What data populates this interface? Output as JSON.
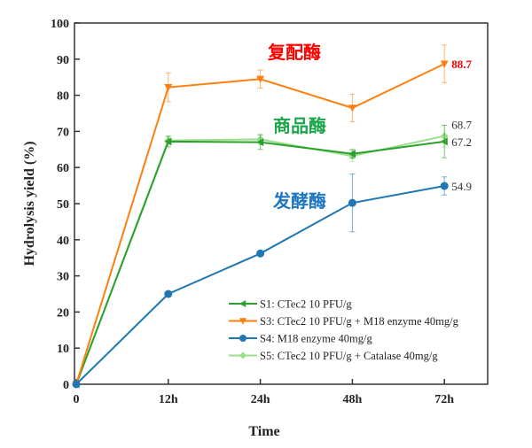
{
  "chart_data": {
    "type": "line",
    "title": "",
    "xlabel": "Time",
    "ylabel": "Hydrolysis yield (%)",
    "categories": [
      "0",
      "12h",
      "24h",
      "48h",
      "72h"
    ],
    "ylim": [
      0,
      100
    ],
    "yticks": [
      0,
      10,
      20,
      30,
      40,
      50,
      60,
      70,
      80,
      90,
      100
    ],
    "grid": false,
    "legend_position": "bottom-right",
    "series": [
      {
        "name": "S1: CTec2 10 PFU/g",
        "color": "#2ca02c",
        "marker": "left-triangle",
        "values": [
          0,
          67.2,
          67.0,
          63.8,
          67.2
        ],
        "errors": [
          0,
          1.5,
          2,
          1.2,
          4.5
        ],
        "end_label": "67.2",
        "label_color": "#333333"
      },
      {
        "name": "S3: CTec2 10 PFU/g + M18 enzyme 40mg/g",
        "color": "#ff7f0e",
        "marker": "down-triangle",
        "values": [
          0,
          82.2,
          84.5,
          76.5,
          88.7
        ],
        "errors": [
          0,
          4,
          2.5,
          3.8,
          5.2
        ],
        "end_label": "88.7",
        "label_color": "#ff0000"
      },
      {
        "name": "S4: M18 enzyme 40mg/g",
        "color": "#1f77b4",
        "marker": "circle",
        "values": [
          0,
          25.0,
          36.2,
          50.2,
          54.9
        ],
        "errors": [
          0,
          0,
          0,
          8,
          2.5
        ],
        "end_label": "54.9",
        "label_color": "#333333"
      },
      {
        "name": "S5: CTec2 10 PFU/g + Catalase 40mg/g",
        "color": "#98df8a",
        "marker": "diamond",
        "values": [
          0,
          67.5,
          67.8,
          63.2,
          68.7
        ],
        "errors": [
          0,
          1,
          1.5,
          1.5,
          3
        ],
        "end_label": "68.7",
        "label_color": "#333333"
      }
    ],
    "annotations": [
      {
        "text": "复配酶",
        "color": "#ff0000"
      },
      {
        "text": "商品酶",
        "color": "#1aa64a"
      },
      {
        "text": "发酵酶",
        "color": "#1f77c4"
      }
    ]
  }
}
